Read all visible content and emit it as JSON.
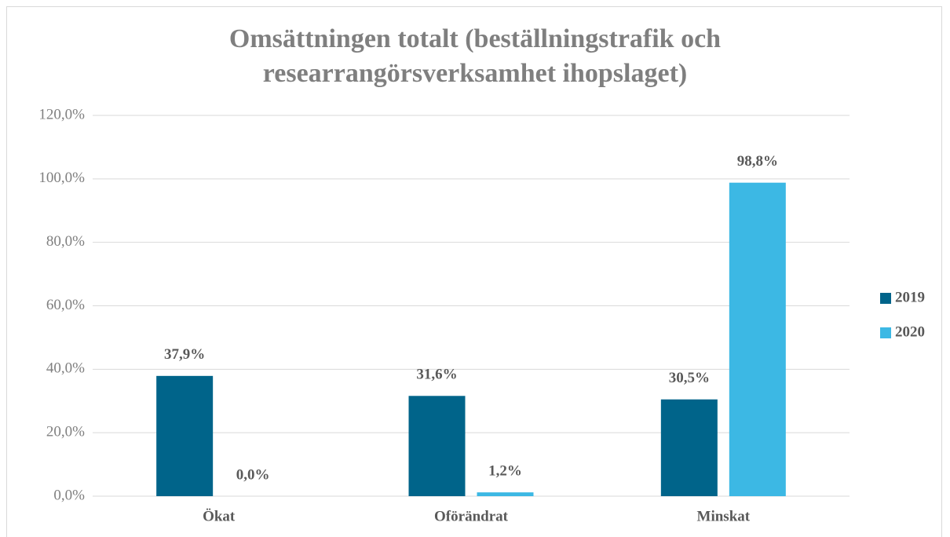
{
  "chart_data": {
    "type": "bar",
    "title": "Omsättningen totalt (beställningstrafik och researrangörsverksamhet ihopslaget)",
    "categories": [
      "Ökat",
      "Oförändrat",
      "Minskat"
    ],
    "series": [
      {
        "name": "2019",
        "color": "#00648a",
        "values": [
          37.9,
          31.6,
          30.5
        ],
        "value_labels": [
          "37,9%",
          "31,6%",
          "30,5%"
        ]
      },
      {
        "name": "2020",
        "color": "#3cb8e4",
        "values": [
          0.0,
          1.2,
          98.8
        ],
        "value_labels": [
          "0,0%",
          "1,2%",
          "98,8%"
        ]
      }
    ],
    "ylim": [
      0,
      120
    ],
    "yticks": [
      {
        "value": 0,
        "label": "0,0%"
      },
      {
        "value": 20,
        "label": "20,0%"
      },
      {
        "value": 40,
        "label": "40,0%"
      },
      {
        "value": 60,
        "label": "60,0%"
      },
      {
        "value": 80,
        "label": "80,0%"
      },
      {
        "value": 100,
        "label": "100,0%"
      },
      {
        "value": 120,
        "label": "120,0%"
      }
    ],
    "grid": true,
    "legend": "right"
  }
}
